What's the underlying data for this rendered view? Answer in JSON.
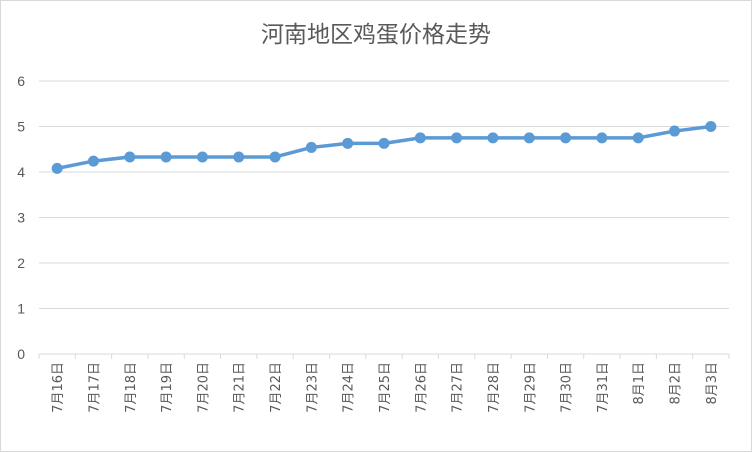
{
  "chart_data": {
    "type": "line",
    "title": "河南地区鸡蛋价格走势",
    "xlabel": "",
    "ylabel": "",
    "categories": [
      "7月16日",
      "7月17日",
      "7月18日",
      "7月19日",
      "7月20日",
      "7月21日",
      "7月22日",
      "7月23日",
      "7月24日",
      "7月25日",
      "7月26日",
      "7月27日",
      "7月28日",
      "7月29日",
      "7月30日",
      "7月31日",
      "8月1日",
      "8月2日",
      "8月3日"
    ],
    "series": [
      {
        "values": [
          4.08,
          4.24,
          4.33,
          4.33,
          4.33,
          4.33,
          4.33,
          4.54,
          4.63,
          4.63,
          4.75,
          4.75,
          4.75,
          4.75,
          4.75,
          4.75,
          4.75,
          4.9,
          5.0
        ]
      }
    ],
    "ylim": [
      0,
      6
    ],
    "yticks": [
      "0",
      "1",
      "2",
      "3",
      "4",
      "5",
      "6"
    ],
    "grid": true,
    "colors": {
      "line": "#5b9bd5",
      "grid": "#d9d9d9",
      "text": "#595959"
    }
  }
}
